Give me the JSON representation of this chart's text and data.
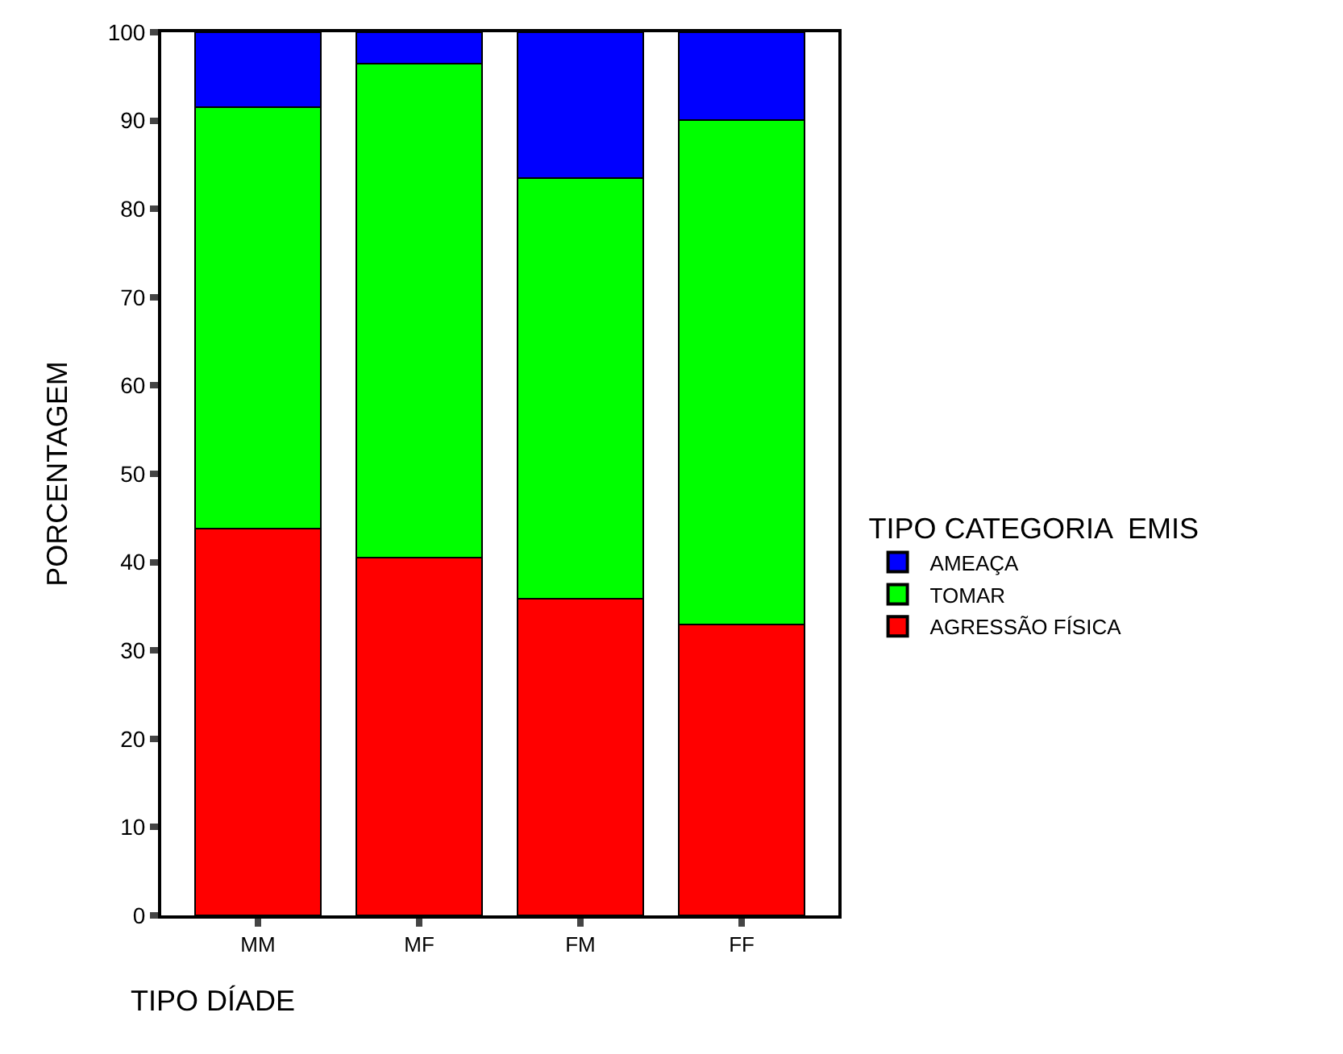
{
  "chart_data": {
    "type": "bar",
    "stacked": true,
    "categories": [
      "MM",
      "MF",
      "FM",
      "FF"
    ],
    "series": [
      {
        "name": "AGRESSÃO FÍSICA",
        "color": "#ff0000",
        "values": [
          43.8,
          40.5,
          35.9,
          32.9
        ]
      },
      {
        "name": "TOMAR",
        "color": "#00ff00",
        "values": [
          47.7,
          55.9,
          47.6,
          57.2
        ]
      },
      {
        "name": "AMEAÇA",
        "color": "#0000ff",
        "values": [
          8.5,
          3.6,
          16.5,
          9.9
        ]
      }
    ],
    "ylim": [
      0,
      100
    ],
    "yticks": [
      0,
      10,
      20,
      30,
      40,
      50,
      60,
      70,
      80,
      90,
      100
    ],
    "xlabel": "TIPO DÍADE",
    "ylabel": "PORCENTAGEM",
    "legend_title": "TIPO CATEGORIA  EMIS",
    "legend": "right"
  }
}
